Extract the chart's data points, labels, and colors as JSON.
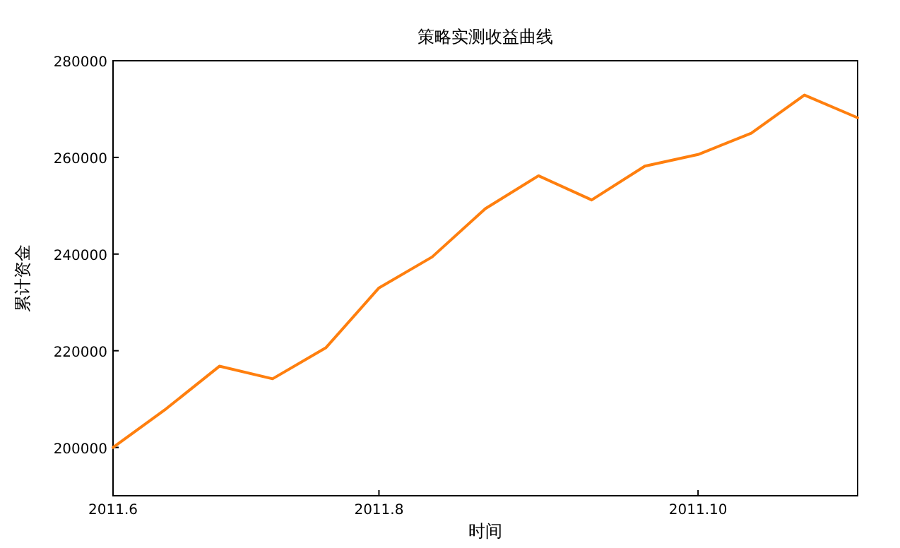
{
  "chart_data": {
    "type": "line",
    "title": "策略实测收益曲线",
    "xlabel": "时间",
    "ylabel": "累计资金",
    "categories": [
      "2011.6",
      null,
      null,
      null,
      null,
      "2011.8",
      null,
      null,
      null,
      null,
      null,
      "2011.10",
      null,
      null,
      null
    ],
    "series": [
      {
        "color": "#ff7f0e",
        "values": [
          200000,
          208000,
          216800,
          214200,
          220600,
          233000,
          239400,
          249400,
          256200,
          251200,
          258200,
          260600,
          265000,
          272900,
          268200
        ]
      }
    ],
    "ylim": [
      190000,
      280000
    ],
    "yticks": [
      200000,
      220000,
      240000,
      260000,
      280000
    ],
    "grid": false
  }
}
